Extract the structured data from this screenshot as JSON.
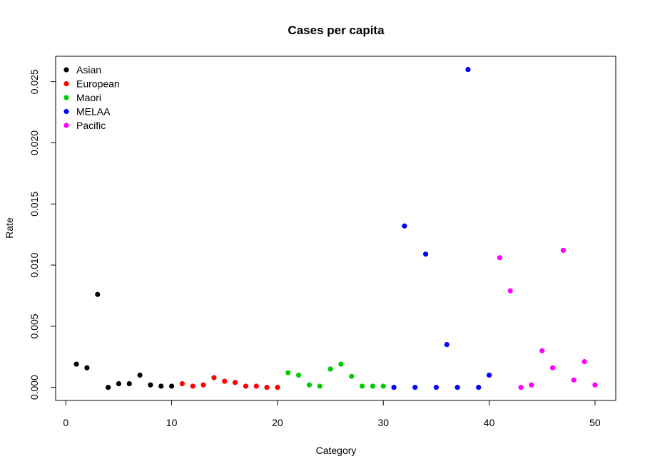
{
  "chart_data": {
    "type": "scatter",
    "title": "Cases per capita",
    "xlabel": "Category",
    "ylabel": "Rate",
    "xlim": [
      -0.96,
      51.96
    ],
    "ylim": [
      -0.00107,
      0.02708
    ],
    "x_ticks": [
      0,
      10,
      20,
      30,
      40,
      50
    ],
    "y_ticks": [
      0.0,
      0.005,
      0.01,
      0.015,
      0.02,
      0.025
    ],
    "y_tick_labels": [
      "0.000",
      "0.005",
      "0.010",
      "0.015",
      "0.020",
      "0.025"
    ],
    "x_tick_labels": [
      "0",
      "10",
      "20",
      "30",
      "40",
      "50"
    ],
    "grid": false,
    "legend_position": "top-left",
    "series": [
      {
        "name": "Asian",
        "color": "#000000",
        "x": [
          1,
          2,
          3,
          4,
          5,
          6,
          7,
          8,
          9,
          10
        ],
        "y": [
          0.0019,
          0.0016,
          0.0076,
          0.0,
          0.0003,
          0.0003,
          0.001,
          0.0002,
          0.0001,
          0.0001
        ]
      },
      {
        "name": "European",
        "color": "#ff0000",
        "x": [
          11,
          12,
          13,
          14,
          15,
          16,
          17,
          18,
          19,
          20
        ],
        "y": [
          0.0003,
          0.0001,
          0.0002,
          0.0008,
          0.0005,
          0.0004,
          0.0001,
          0.0001,
          0.0,
          0.0
        ]
      },
      {
        "name": "Maori",
        "color": "#00cd00",
        "x": [
          21,
          22,
          23,
          24,
          25,
          26,
          27,
          28,
          29,
          30
        ],
        "y": [
          0.0012,
          0.001,
          0.0002,
          0.0001,
          0.0015,
          0.0019,
          0.0009,
          0.0001,
          0.0001,
          0.0001
        ]
      },
      {
        "name": "MELAA",
        "color": "#0000ff",
        "x": [
          31,
          32,
          33,
          34,
          35,
          36,
          37,
          38,
          39,
          40
        ],
        "y": [
          0.0,
          0.0132,
          0.0,
          0.0109,
          0.0,
          0.0035,
          0.0,
          0.026,
          0.0,
          0.001
        ]
      },
      {
        "name": "Pacific",
        "color": "#ff00ff",
        "x": [
          41,
          42,
          43,
          44,
          45,
          46,
          47,
          48,
          49,
          50
        ],
        "y": [
          0.0106,
          0.0079,
          0.0,
          0.0002,
          0.003,
          0.0016,
          0.0112,
          0.0006,
          0.0021,
          0.0002
        ]
      }
    ]
  }
}
